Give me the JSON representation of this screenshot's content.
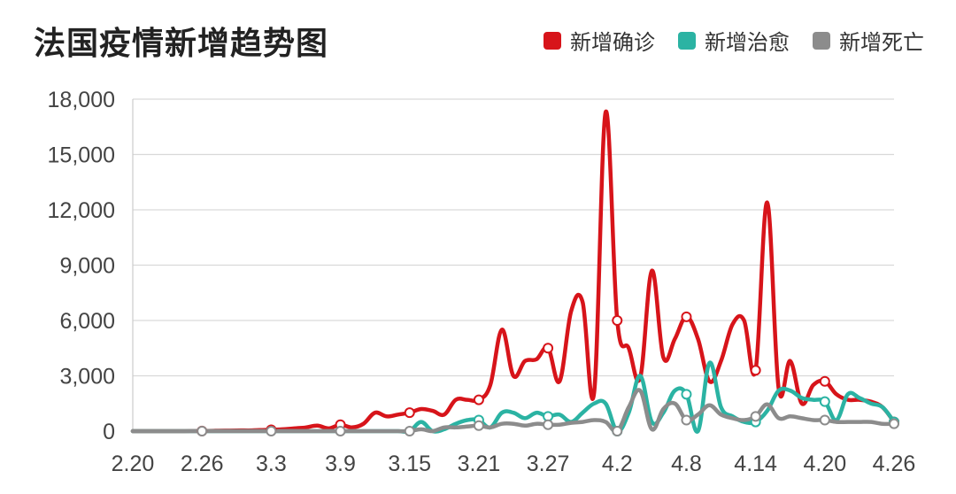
{
  "chart_data": {
    "type": "line",
    "title": "法国疫情新增趋势图",
    "legend_position": "top-right",
    "grid": true,
    "ylim": [
      0,
      18000
    ],
    "yticks": [
      0,
      3000,
      6000,
      9000,
      12000,
      15000,
      18000
    ],
    "ytick_labels": [
      "0",
      "3,000",
      "6,000",
      "9,000",
      "12,000",
      "15,000",
      "18,000"
    ],
    "xtick_labels": [
      "2.20",
      "2.26",
      "3.3",
      "3.9",
      "3.15",
      "3.21",
      "3.27",
      "4.2",
      "4.8",
      "4.14",
      "4.20",
      "4.26"
    ],
    "x": [
      "2.20",
      "2.21",
      "2.22",
      "2.23",
      "2.24",
      "2.25",
      "2.26",
      "2.27",
      "2.28",
      "2.29",
      "3.1",
      "3.2",
      "3.3",
      "3.4",
      "3.5",
      "3.6",
      "3.7",
      "3.8",
      "3.9",
      "3.10",
      "3.11",
      "3.12",
      "3.13",
      "3.14",
      "3.15",
      "3.16",
      "3.17",
      "3.18",
      "3.19",
      "3.20",
      "3.21",
      "3.22",
      "3.23",
      "3.24",
      "3.25",
      "3.26",
      "3.27",
      "3.28",
      "3.29",
      "3.30",
      "3.31",
      "4.1",
      "4.2",
      "4.3",
      "4.4",
      "4.5",
      "4.6",
      "4.7",
      "4.8",
      "4.9",
      "4.10",
      "4.11",
      "4.12",
      "4.13",
      "4.14",
      "4.15",
      "4.16",
      "4.17",
      "4.18",
      "4.19",
      "4.20",
      "4.21",
      "4.22",
      "4.23",
      "4.24",
      "4.25",
      "4.26"
    ],
    "series": [
      {
        "name": "新增确诊",
        "color": "#d7141a",
        "values": [
          0,
          0,
          0,
          0,
          0,
          5,
          6,
          20,
          30,
          40,
          40,
          60,
          70,
          100,
          150,
          200,
          300,
          150,
          350,
          200,
          400,
          1000,
          800,
          900,
          1000,
          1200,
          1100,
          900,
          1700,
          1700,
          1700,
          2500,
          5500,
          3000,
          3800,
          3900,
          4500,
          2700,
          6500,
          7000,
          2100,
          17300,
          6000,
          4500,
          2900,
          8700,
          4000,
          5000,
          6200,
          5000,
          2700,
          3800,
          5800,
          6000,
          3300,
          12400,
          2300,
          3800,
          1500,
          2500,
          2700,
          2000,
          1700,
          1700,
          1600,
          1300,
          500
        ],
        "markers": [
          6,
          12,
          18,
          24,
          30,
          36,
          42,
          48,
          54,
          60,
          66
        ]
      },
      {
        "name": "新增治愈",
        "color": "#2bb3a3",
        "values": [
          0,
          0,
          0,
          0,
          0,
          0,
          0,
          0,
          0,
          0,
          0,
          0,
          0,
          0,
          0,
          0,
          0,
          0,
          0,
          0,
          0,
          0,
          0,
          0,
          0,
          500,
          0,
          100,
          400,
          600,
          600,
          200,
          1000,
          1000,
          700,
          1000,
          800,
          900,
          500,
          1000,
          1500,
          1500,
          0,
          1000,
          3000,
          500,
          1000,
          2200,
          2000,
          0,
          3700,
          1300,
          800,
          500,
          500,
          1100,
          2200,
          2200,
          1800,
          1700,
          1600,
          600,
          2000,
          1800,
          1500,
          1300,
          500
        ],
        "markers": [
          30,
          36,
          42,
          48,
          54,
          60,
          66
        ]
      },
      {
        "name": "新增死亡",
        "color": "#8c8c8c",
        "values": [
          0,
          0,
          0,
          0,
          0,
          0,
          0,
          0,
          0,
          0,
          0,
          0,
          0,
          0,
          0,
          0,
          0,
          0,
          0,
          0,
          0,
          0,
          0,
          0,
          0,
          100,
          0,
          200,
          200,
          250,
          300,
          200,
          400,
          400,
          300,
          400,
          350,
          350,
          450,
          500,
          600,
          500,
          0,
          1300,
          2200,
          100,
          1200,
          1500,
          600,
          900,
          1400,
          900,
          700,
          600,
          800,
          1450,
          700,
          800,
          700,
          600,
          600,
          500,
          500,
          500,
          500,
          400,
          400
        ],
        "markers": [
          6,
          12,
          18,
          24,
          30,
          36,
          42,
          48,
          54,
          60,
          66
        ]
      }
    ]
  }
}
